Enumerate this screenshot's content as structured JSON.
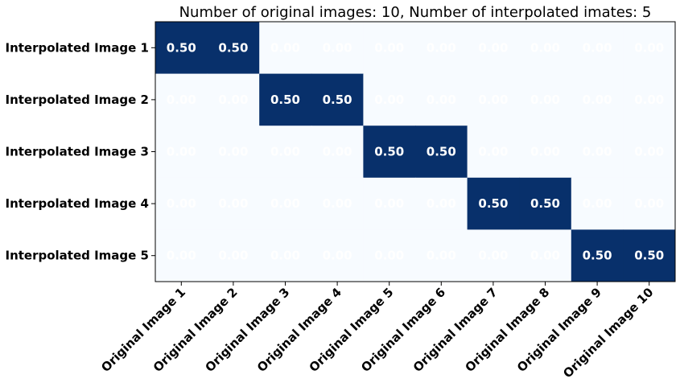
{
  "chart_data": {
    "type": "heatmap",
    "title": "Number of original images: 10, Number of interpolated imates: 5",
    "xlabel": "",
    "ylabel": "",
    "x_categories": [
      "Original Image 1",
      "Original Image 2",
      "Original Image 3",
      "Original Image 4",
      "Original Image 5",
      "Original Image 6",
      "Original Image 7",
      "Original Image 8",
      "Original Image 9",
      "Original Image 10"
    ],
    "y_categories": [
      "Interpolated Image 1",
      "Interpolated Image 2",
      "Interpolated Image 3",
      "Interpolated Image 4",
      "Interpolated Image 5"
    ],
    "values": [
      [
        0.5,
        0.5,
        0,
        0,
        0,
        0,
        0,
        0,
        0,
        0
      ],
      [
        0,
        0,
        0.5,
        0.5,
        0,
        0,
        0,
        0,
        0,
        0
      ],
      [
        0,
        0,
        0,
        0,
        0.5,
        0.5,
        0,
        0,
        0,
        0
      ],
      [
        0,
        0,
        0,
        0,
        0,
        0,
        0.5,
        0.5,
        0,
        0
      ],
      [
        0,
        0,
        0,
        0,
        0,
        0,
        0,
        0,
        0.5,
        0.5
      ]
    ],
    "value_format": "0.00",
    "colormap": "Blues",
    "colors": {
      "low": "#f7fbff",
      "high": "#08306b",
      "annotation": "#ffffff"
    },
    "grid": false,
    "legend": "none"
  }
}
